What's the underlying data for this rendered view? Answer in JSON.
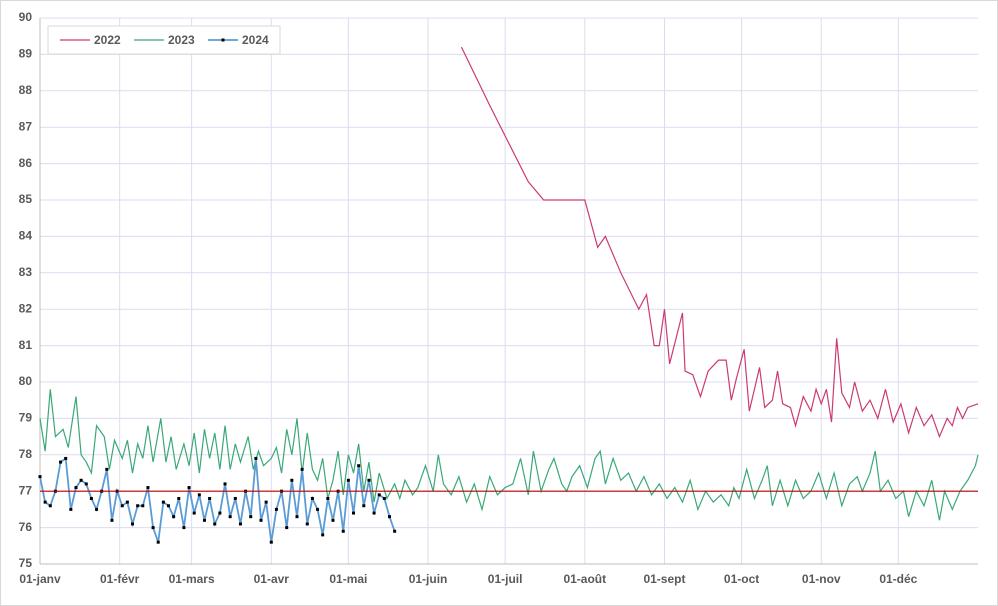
{
  "chart_data": {
    "type": "line",
    "xlim": [
      0,
      365
    ],
    "xticks": [
      {
        "value": 0,
        "label": "01-janv"
      },
      {
        "value": 31,
        "label": "01-févr"
      },
      {
        "value": 59,
        "label": "01-mars"
      },
      {
        "value": 90,
        "label": "01-avr"
      },
      {
        "value": 120,
        "label": "01-mai"
      },
      {
        "value": 151,
        "label": "01-juin"
      },
      {
        "value": 181,
        "label": "01-juil"
      },
      {
        "value": 212,
        "label": "01-août"
      },
      {
        "value": 243,
        "label": "01-sept"
      },
      {
        "value": 273,
        "label": "01-oct"
      },
      {
        "value": 304,
        "label": "01-nov"
      },
      {
        "value": 334,
        "label": "01-déc"
      }
    ],
    "ylim": [
      75,
      90
    ],
    "yticks": [
      75,
      76,
      77,
      78,
      79,
      80,
      81,
      82,
      83,
      84,
      85,
      86,
      87,
      88,
      89,
      90
    ],
    "grid": true,
    "legend": "upper left",
    "reference_line": {
      "value": 77,
      "color": "#c00000"
    },
    "series": [
      {
        "name": "2022",
        "color": "#cc3a72",
        "marker": false,
        "x": [
          164,
          175,
          185,
          190,
          196,
          205,
          212,
          217,
          220,
          226,
          233,
          236,
          239,
          241,
          243,
          245,
          250,
          251,
          254,
          257,
          260,
          264,
          267,
          269,
          271,
          274,
          276,
          280,
          282,
          285,
          287,
          289,
          292,
          294,
          297,
          300,
          302,
          304,
          306,
          308,
          310,
          312,
          315,
          317,
          320,
          323,
          326,
          329,
          332,
          335,
          338,
          341,
          344,
          347,
          350,
          353,
          355,
          357,
          359,
          361,
          365
        ],
        "values": [
          89.2,
          87.6,
          86.2,
          85.5,
          85.0,
          85.0,
          85.0,
          83.7,
          84.0,
          83.0,
          82.0,
          82.4,
          81.0,
          81.0,
          82.0,
          80.5,
          81.9,
          80.3,
          80.2,
          79.6,
          80.3,
          80.6,
          80.6,
          79.5,
          80.1,
          80.9,
          79.2,
          80.4,
          79.3,
          79.5,
          80.3,
          79.4,
          79.3,
          78.8,
          79.6,
          79.2,
          79.8,
          79.4,
          79.8,
          78.9,
          81.2,
          79.7,
          79.3,
          80.0,
          79.2,
          79.5,
          79.0,
          79.8,
          78.9,
          79.4,
          78.6,
          79.3,
          78.8,
          79.1,
          78.5,
          79.0,
          78.8,
          79.3,
          79.0,
          79.3,
          79.4
        ]
      },
      {
        "name": "2023",
        "color": "#3aa876",
        "marker": false,
        "x": [
          0,
          2,
          4,
          6,
          9,
          11,
          14,
          16,
          18,
          20,
          22,
          25,
          27,
          29,
          32,
          34,
          36,
          38,
          40,
          42,
          44,
          47,
          49,
          51,
          53,
          56,
          58,
          60,
          62,
          64,
          66,
          68,
          70,
          72,
          74,
          76,
          78,
          81,
          83,
          85,
          87,
          90,
          92,
          94,
          96,
          98,
          100,
          102,
          104,
          106,
          108,
          110,
          112,
          114,
          116,
          118,
          120,
          122,
          124,
          126,
          128,
          130,
          132,
          135,
          138,
          140,
          142,
          145,
          147,
          150,
          153,
          155,
          157,
          160,
          163,
          166,
          169,
          172,
          175,
          178,
          181,
          184,
          187,
          190,
          192,
          195,
          198,
          200,
          203,
          205,
          207,
          210,
          213,
          216,
          218,
          220,
          223,
          226,
          229,
          232,
          235,
          238,
          241,
          244,
          247,
          250,
          253,
          256,
          259,
          262,
          265,
          268,
          270,
          272,
          275,
          278,
          281,
          283,
          285,
          288,
          291,
          294,
          297,
          300,
          303,
          306,
          309,
          312,
          315,
          318,
          320,
          323,
          325,
          327,
          330,
          333,
          336,
          338,
          341,
          344,
          347,
          350,
          352,
          355,
          358,
          361,
          364,
          365
        ],
        "values": [
          79.0,
          78.1,
          79.8,
          78.5,
          78.7,
          78.2,
          79.6,
          78.0,
          77.8,
          77.5,
          78.8,
          78.5,
          77.6,
          78.4,
          77.9,
          78.4,
          77.5,
          78.3,
          77.9,
          78.8,
          77.8,
          79.0,
          77.8,
          78.5,
          77.6,
          78.3,
          77.7,
          78.6,
          77.5,
          78.7,
          77.9,
          78.6,
          77.6,
          78.8,
          77.6,
          78.3,
          77.8,
          78.5,
          77.6,
          78.1,
          77.7,
          77.9,
          78.2,
          77.5,
          78.7,
          78.0,
          79.0,
          77.5,
          78.6,
          77.6,
          77.3,
          77.9,
          76.8,
          77.3,
          78.1,
          76.9,
          78.0,
          77.5,
          78.3,
          77.0,
          77.8,
          76.7,
          77.5,
          76.8,
          77.2,
          76.8,
          77.3,
          76.9,
          77.1,
          77.7,
          77.0,
          78.0,
          77.2,
          76.9,
          77.4,
          76.7,
          77.2,
          76.5,
          77.4,
          76.9,
          77.1,
          77.2,
          77.9,
          76.9,
          78.1,
          77.0,
          77.6,
          77.9,
          77.2,
          77.0,
          77.4,
          77.7,
          77.1,
          77.9,
          78.1,
          77.2,
          77.9,
          77.3,
          77.5,
          77.0,
          77.4,
          76.9,
          77.2,
          76.8,
          77.1,
          76.7,
          77.3,
          76.5,
          77.0,
          76.7,
          76.9,
          76.6,
          77.1,
          76.8,
          77.6,
          76.8,
          77.3,
          77.7,
          76.6,
          77.3,
          76.6,
          77.3,
          76.8,
          77.0,
          77.5,
          76.8,
          77.5,
          76.6,
          77.2,
          77.4,
          77.0,
          77.5,
          78.1,
          77.0,
          77.3,
          76.8,
          77.0,
          76.3,
          77.0,
          76.6,
          77.3,
          76.2,
          77.0,
          76.5,
          77.0,
          77.3,
          77.7,
          78.0
        ]
      },
      {
        "name": "2024",
        "color": "#5b9bd5",
        "marker": true,
        "marker_color": "#000000",
        "x": [
          0,
          2,
          4,
          6,
          8,
          10,
          12,
          14,
          16,
          18,
          20,
          22,
          24,
          26,
          28,
          30,
          32,
          34,
          36,
          38,
          40,
          42,
          44,
          46,
          48,
          50,
          52,
          54,
          56,
          58,
          60,
          62,
          64,
          66,
          68,
          70,
          72,
          74,
          76,
          78,
          80,
          82,
          84,
          86,
          88,
          90,
          92,
          94,
          96,
          98,
          100,
          102,
          104,
          106,
          108,
          110,
          112,
          114,
          116,
          118,
          120,
          122,
          124,
          126,
          128,
          130,
          132,
          134,
          136,
          138
        ],
        "values": [
          77.4,
          76.7,
          76.6,
          77.0,
          77.8,
          77.9,
          76.5,
          77.1,
          77.3,
          77.2,
          76.8,
          76.5,
          77.0,
          77.6,
          76.2,
          77.0,
          76.6,
          76.7,
          76.1,
          76.6,
          76.6,
          77.1,
          76.0,
          75.6,
          76.7,
          76.6,
          76.3,
          76.8,
          76.0,
          77.1,
          76.4,
          76.9,
          76.2,
          76.8,
          76.1,
          76.4,
          77.2,
          76.3,
          76.8,
          76.1,
          77.0,
          76.3,
          77.9,
          76.2,
          76.7,
          75.6,
          76.5,
          77.0,
          76.0,
          77.3,
          76.3,
          77.6,
          76.1,
          76.8,
          76.5,
          75.8,
          76.8,
          76.2,
          77.0,
          75.9,
          77.3,
          76.4,
          77.7,
          76.6,
          77.3,
          76.4,
          76.9,
          76.8,
          76.3,
          75.9
        ]
      }
    ]
  }
}
